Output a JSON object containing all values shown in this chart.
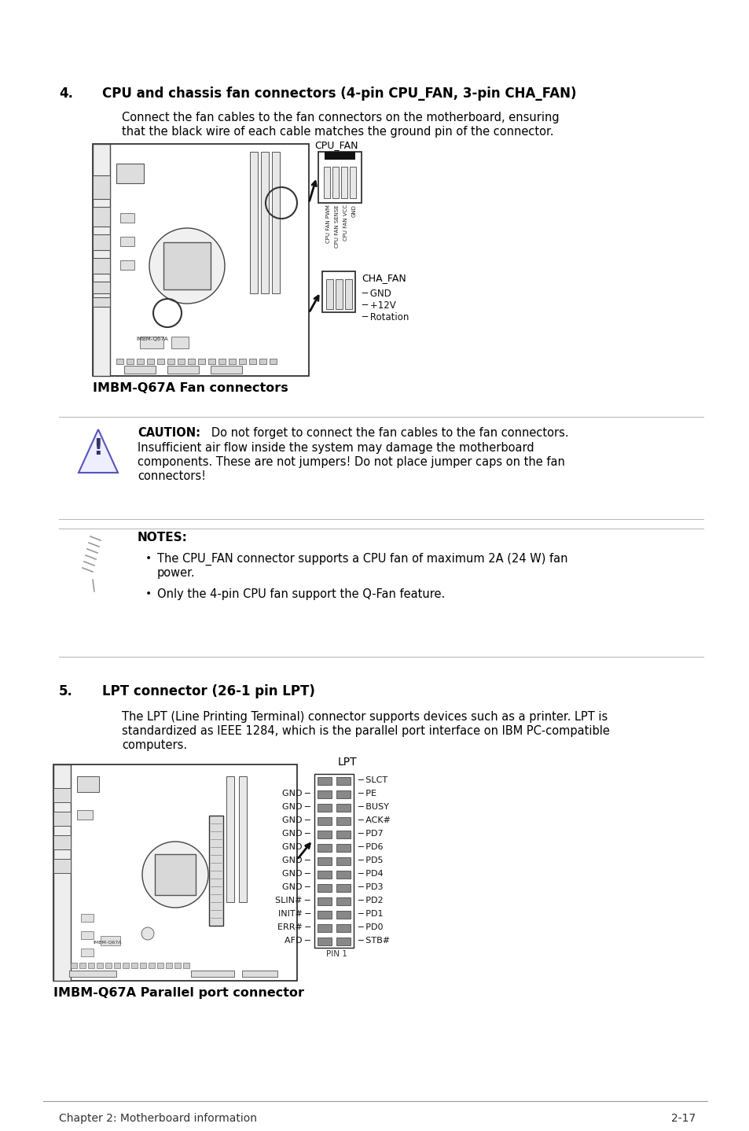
{
  "bg_color": "#ffffff",
  "section4_num": "4.",
  "section4_title": "CPU and chassis fan connectors (4-pin CPU_FAN, 3-pin CHA_FAN)",
  "section4_body1": "Connect the fan cables to the fan connectors on the motherboard, ensuring",
  "section4_body2": "that the black wire of each cable matches the ground pin of the connector.",
  "cpu_fan_label": "CPU_FAN",
  "cha_fan_label": "CHA_FAN",
  "cpu_fan_pins": [
    "CPU FAN PWM",
    "CPU FAN SENSE",
    "CPU FAN VCC",
    "GND"
  ],
  "cha_fan_pins": [
    "GND",
    "+12V",
    "Rotation"
  ],
  "fan_connector_label": "IMBM-Q67A Fan connectors",
  "caution_title": "CAUTION:",
  "caution_line1": "   Do not forget to connect the fan cables to the fan connectors.",
  "caution_line2": "Insufficient air flow inside the system may damage the motherboard",
  "caution_line3": "components. These are not jumpers! Do not place jumper caps on the fan",
  "caution_line4": "connectors!",
  "notes_title": "NOTES:",
  "note1a": "The CPU_FAN connector supports a CPU fan of maximum 2A (24 W) fan",
  "note1b": "power.",
  "note2": "Only the 4-pin CPU fan support the Q-Fan feature.",
  "section5_num": "5.",
  "section5_title": "LPT connector (26-1 pin LPT)",
  "section5_body1": "The LPT (Line Printing Terminal) connector supports devices such as a printer. LPT is",
  "section5_body2": "standardized as IEEE 1284, which is the parallel port interface on IBM PC-compatible",
  "section5_body3": "computers.",
  "lpt_label": "LPT",
  "lpt_right_pins": [
    "SLCT",
    "PE",
    "BUSY",
    "ACK#",
    "PD7",
    "PD6",
    "PD5",
    "PD4",
    "PD3",
    "PD2",
    "PD1",
    "PD0",
    "STB#"
  ],
  "lpt_left_pins": [
    "",
    "GND",
    "GND",
    "GND",
    "GND",
    "GND",
    "GND",
    "GND",
    "GND",
    "SLIN#",
    "INIT#",
    "ERR#",
    "AFD"
  ],
  "lpt_pin1": "PIN 1",
  "lpt_connector_label": "IMBM-Q67A Parallel port connector",
  "footer_left": "Chapter 2: Motherboard information",
  "footer_right": "2-17"
}
